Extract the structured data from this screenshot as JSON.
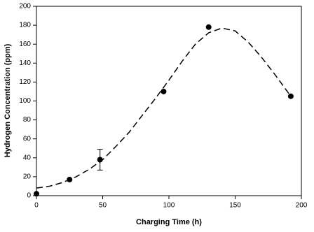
{
  "chart_data": {
    "type": "scatter",
    "x_label": "Charging Time (h)",
    "y_label": "Hydrogen Concentration (ppm)",
    "x": [
      0,
      25,
      48,
      96,
      130,
      192
    ],
    "values": [
      2,
      17,
      38,
      110,
      178,
      105
    ],
    "errors": [
      null,
      null,
      11,
      null,
      null,
      null
    ],
    "color": "#000000",
    "fit": {
      "x": [
        0,
        10,
        20,
        30,
        40,
        50,
        60,
        70,
        80,
        90,
        100,
        110,
        120,
        130,
        140,
        150,
        160,
        170,
        180,
        192
      ],
      "values": [
        8,
        10,
        14,
        20,
        28,
        38,
        52,
        67,
        85,
        103,
        122,
        142,
        160,
        172,
        177,
        174,
        162,
        146,
        128,
        105
      ],
      "color": "#000000",
      "dashed": true
    },
    "xlim": [
      0,
      200
    ],
    "xticks": [
      0,
      50,
      100,
      150,
      200
    ],
    "ylim": [
      0,
      200
    ],
    "yticks": [
      0,
      20,
      40,
      60,
      80,
      100,
      120,
      140,
      160,
      180,
      200
    ],
    "grid": false
  }
}
